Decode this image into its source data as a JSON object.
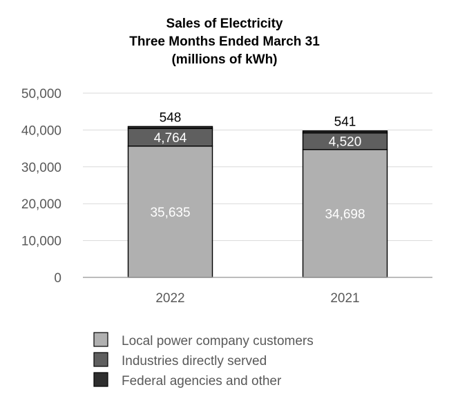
{
  "chart_data": {
    "type": "bar",
    "stacked": true,
    "title": [
      "Sales of Electricity",
      "Three Months Ended March 31",
      "(millions of kWh)"
    ],
    "xlabel": "",
    "ylabel": "",
    "categories": [
      "2022",
      "2021"
    ],
    "ylim": [
      0,
      50000
    ],
    "yticks": [
      0,
      10000,
      20000,
      30000,
      40000,
      50000
    ],
    "ytick_labels": [
      "0",
      "10,000",
      "20,000",
      "30,000",
      "40,000",
      "50,000"
    ],
    "grid": true,
    "legend_position": "bottom",
    "series": [
      {
        "name": "Local power company customers",
        "values": [
          35635,
          34698
        ],
        "labels": [
          "35,635",
          "34,698"
        ],
        "color": "#b0b0b0",
        "label_color": "#ffffff"
      },
      {
        "name": "Industries directly served",
        "values": [
          4764,
          4520
        ],
        "labels": [
          "4,764",
          "4,520"
        ],
        "color": "#5f5f5f",
        "label_color": "#ffffff"
      },
      {
        "name": "Federal agencies and other",
        "values": [
          548,
          541
        ],
        "labels": [
          "548",
          "541"
        ],
        "color": "#2e2e2e",
        "label_color": "#000000"
      }
    ]
  }
}
